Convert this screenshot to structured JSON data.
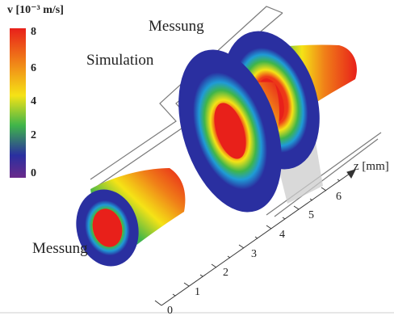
{
  "colorbar": {
    "title": "v [10⁻³ m/s]",
    "ticks": [
      "8",
      "6",
      "4",
      "2",
      "0"
    ],
    "tick_values": [
      8,
      6,
      4,
      2,
      0
    ],
    "range": [
      0,
      8
    ],
    "colors": [
      "#e8201a",
      "#f07f18",
      "#f5e316",
      "#3fb54a",
      "#2a2fa0",
      "#6a2a8a"
    ]
  },
  "labels": {
    "measurement_top": "Messung",
    "simulation": "Simulation",
    "measurement_bottom": "Messung"
  },
  "axis": {
    "label": "z [mm]",
    "ticks": [
      "0",
      "1",
      "2",
      "3",
      "4",
      "5",
      "6"
    ]
  }
}
